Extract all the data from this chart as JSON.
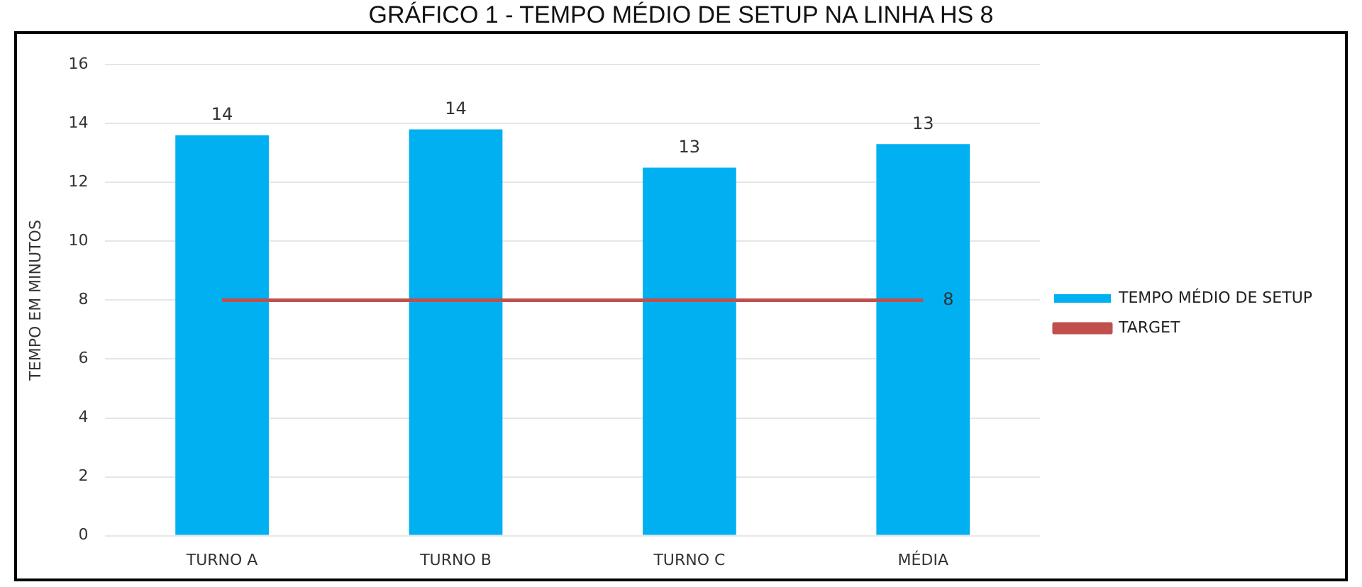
{
  "chart_data": {
    "type": "bar",
    "title": "GRÁFICO 1 - TEMPO MÉDIO DE SETUP NA LINHA HS 8",
    "ylabel": "TEMPO EM MINUTOS",
    "categories": [
      "TURNO A",
      "TURNO B",
      "TURNO C",
      "MÉDIA"
    ],
    "series": [
      {
        "name": "TEMPO MÉDIO DE SETUP",
        "color": "#00b0f0",
        "values": [
          13.6,
          13.8,
          12.5,
          13.3
        ],
        "value_labels": [
          "14",
          "14",
          "13",
          "13"
        ]
      },
      {
        "name": "TARGET",
        "type": "line",
        "color": "#c0504d",
        "values": [
          8,
          8,
          8,
          8
        ],
        "value_labels": [
          null,
          null,
          null,
          "8"
        ],
        "marker": "none"
      }
    ],
    "ylim": [
      0,
      16
    ],
    "yticks": [
      0,
      2,
      4,
      6,
      8,
      10,
      12,
      14,
      16
    ],
    "grid": "y",
    "legend": "right"
  }
}
